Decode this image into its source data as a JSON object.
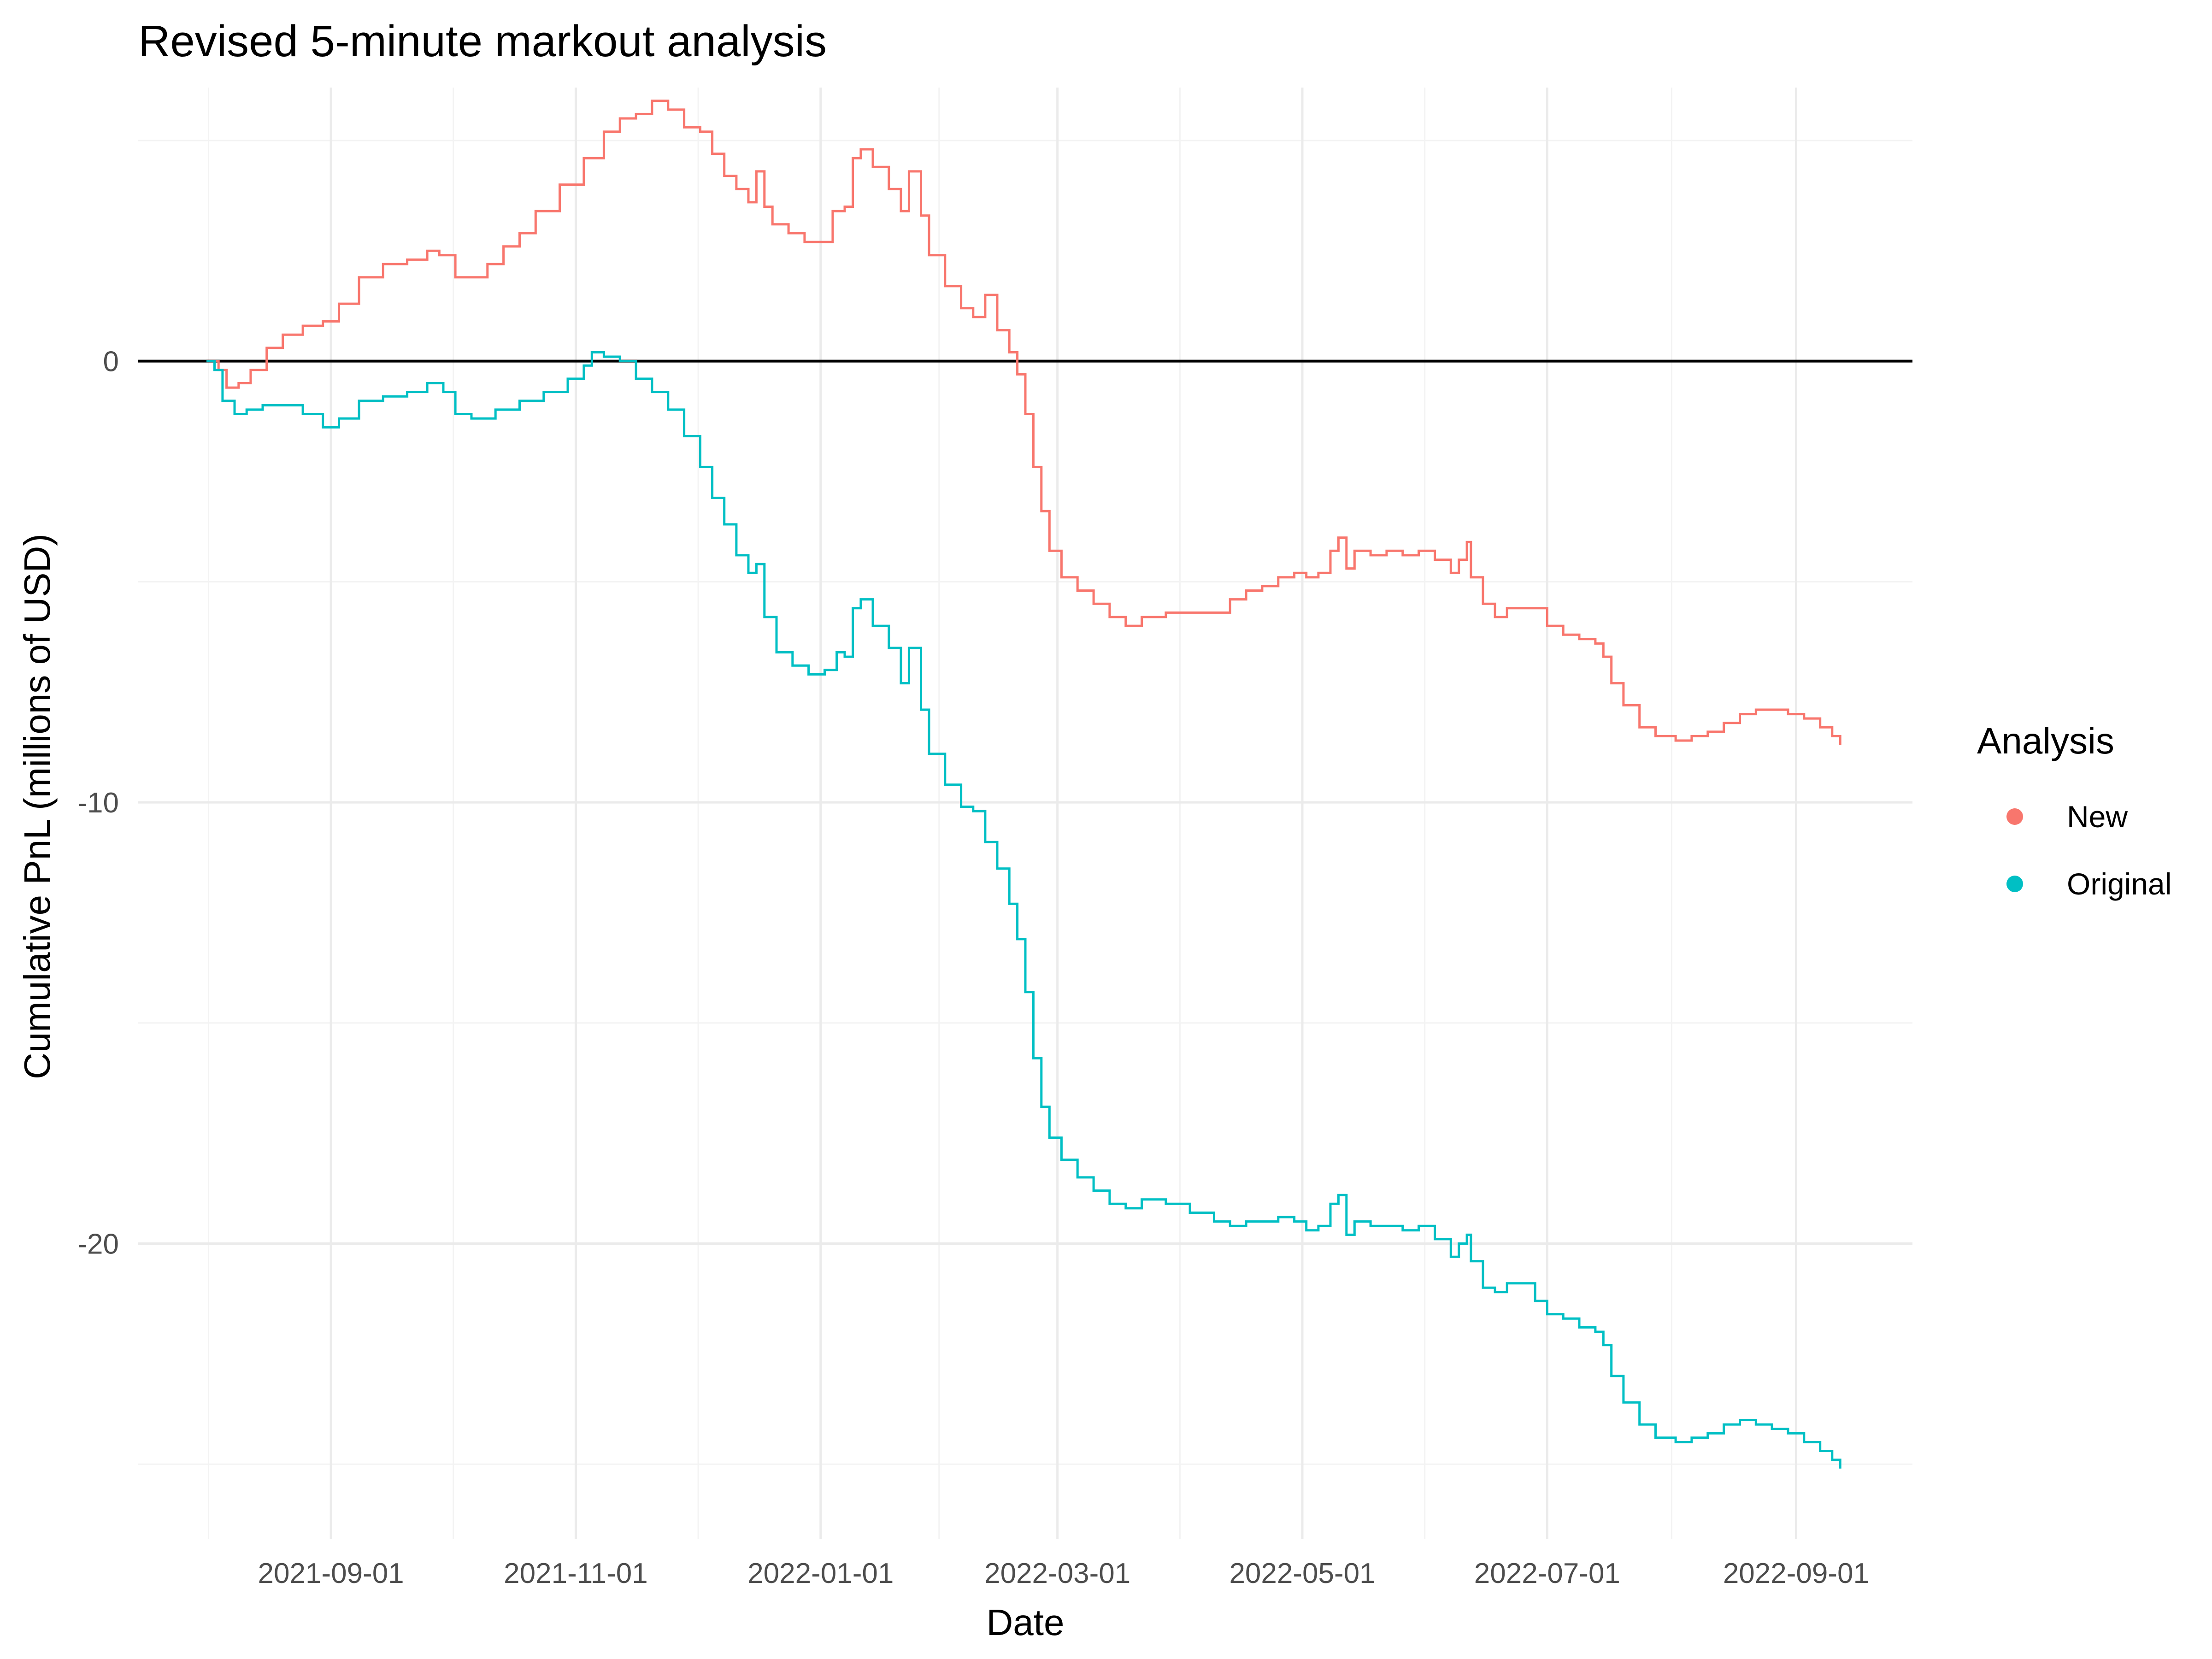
{
  "chart_data": {
    "type": "line",
    "title": "Revised 5-minute markout analysis",
    "xlabel": "Date",
    "ylabel": "Cumulative PnL (millions of USD)",
    "x_type": "date",
    "xlim": [
      "2021-07-15",
      "2022-09-30"
    ],
    "ylim": [
      -26.7,
      6.2
    ],
    "x_ticks": [
      "2021-09-01",
      "2021-11-01",
      "2022-01-01",
      "2022-03-01",
      "2022-05-01",
      "2022-07-01",
      "2022-09-01"
    ],
    "y_ticks": [
      0,
      -10,
      -20
    ],
    "y_tick_labels": [
      "0",
      "-10",
      "-20"
    ],
    "grid": true,
    "hline": 0,
    "legend": {
      "title": "Analysis",
      "position": "right"
    },
    "series": [
      {
        "name": "New",
        "color": "#F8766D",
        "points": [
          [
            "2021-08-01",
            0.0
          ],
          [
            "2021-08-04",
            -0.2
          ],
          [
            "2021-08-06",
            -0.6
          ],
          [
            "2021-08-09",
            -0.5
          ],
          [
            "2021-08-12",
            -0.2
          ],
          [
            "2021-08-16",
            0.3
          ],
          [
            "2021-08-20",
            0.6
          ],
          [
            "2021-08-25",
            0.8
          ],
          [
            "2021-08-30",
            0.9
          ],
          [
            "2021-09-03",
            1.3
          ],
          [
            "2021-09-08",
            1.9
          ],
          [
            "2021-09-14",
            2.2
          ],
          [
            "2021-09-20",
            2.3
          ],
          [
            "2021-09-25",
            2.5
          ],
          [
            "2021-09-28",
            2.4
          ],
          [
            "2021-10-02",
            1.9
          ],
          [
            "2021-10-06",
            1.9
          ],
          [
            "2021-10-10",
            2.2
          ],
          [
            "2021-10-14",
            2.6
          ],
          [
            "2021-10-18",
            2.9
          ],
          [
            "2021-10-22",
            3.4
          ],
          [
            "2021-10-28",
            4.0
          ],
          [
            "2021-11-03",
            4.6
          ],
          [
            "2021-11-08",
            5.2
          ],
          [
            "2021-11-12",
            5.5
          ],
          [
            "2021-11-16",
            5.6
          ],
          [
            "2021-11-20",
            5.9
          ],
          [
            "2021-11-24",
            5.7
          ],
          [
            "2021-11-28",
            5.3
          ],
          [
            "2021-12-02",
            5.2
          ],
          [
            "2021-12-05",
            4.7
          ],
          [
            "2021-12-08",
            4.2
          ],
          [
            "2021-12-11",
            3.9
          ],
          [
            "2021-12-14",
            3.6
          ],
          [
            "2021-12-16",
            4.3
          ],
          [
            "2021-12-18",
            3.5
          ],
          [
            "2021-12-20",
            3.1
          ],
          [
            "2021-12-24",
            2.9
          ],
          [
            "2021-12-28",
            2.7
          ],
          [
            "2022-01-01",
            2.7
          ],
          [
            "2022-01-04",
            3.4
          ],
          [
            "2022-01-07",
            3.5
          ],
          [
            "2022-01-09",
            4.6
          ],
          [
            "2022-01-11",
            4.8
          ],
          [
            "2022-01-14",
            4.4
          ],
          [
            "2022-01-18",
            3.9
          ],
          [
            "2022-01-21",
            3.4
          ],
          [
            "2022-01-23",
            4.3
          ],
          [
            "2022-01-26",
            3.3
          ],
          [
            "2022-01-28",
            2.4
          ],
          [
            "2022-02-01",
            1.7
          ],
          [
            "2022-02-05",
            1.2
          ],
          [
            "2022-02-08",
            1.0
          ],
          [
            "2022-02-11",
            1.5
          ],
          [
            "2022-02-14",
            0.7
          ],
          [
            "2022-02-17",
            0.2
          ],
          [
            "2022-02-19",
            -0.3
          ],
          [
            "2022-02-21",
            -1.2
          ],
          [
            "2022-02-23",
            -2.4
          ],
          [
            "2022-02-25",
            -3.4
          ],
          [
            "2022-02-27",
            -4.3
          ],
          [
            "2022-03-02",
            -4.9
          ],
          [
            "2022-03-06",
            -5.2
          ],
          [
            "2022-03-10",
            -5.5
          ],
          [
            "2022-03-14",
            -5.8
          ],
          [
            "2022-03-18",
            -6.0
          ],
          [
            "2022-03-22",
            -5.8
          ],
          [
            "2022-03-28",
            -5.7
          ],
          [
            "2022-04-03",
            -5.7
          ],
          [
            "2022-04-09",
            -5.7
          ],
          [
            "2022-04-13",
            -5.4
          ],
          [
            "2022-04-17",
            -5.2
          ],
          [
            "2022-04-21",
            -5.1
          ],
          [
            "2022-04-25",
            -4.9
          ],
          [
            "2022-04-29",
            -4.8
          ],
          [
            "2022-05-02",
            -4.9
          ],
          [
            "2022-05-05",
            -4.8
          ],
          [
            "2022-05-08",
            -4.3
          ],
          [
            "2022-05-10",
            -4.0
          ],
          [
            "2022-05-12",
            -4.7
          ],
          [
            "2022-05-14",
            -4.3
          ],
          [
            "2022-05-18",
            -4.4
          ],
          [
            "2022-05-22",
            -4.3
          ],
          [
            "2022-05-26",
            -4.4
          ],
          [
            "2022-05-30",
            -4.3
          ],
          [
            "2022-06-03",
            -4.5
          ],
          [
            "2022-06-07",
            -4.8
          ],
          [
            "2022-06-09",
            -4.5
          ],
          [
            "2022-06-11",
            -4.1
          ],
          [
            "2022-06-12",
            -4.9
          ],
          [
            "2022-06-15",
            -5.5
          ],
          [
            "2022-06-18",
            -5.8
          ],
          [
            "2022-06-21",
            -5.6
          ],
          [
            "2022-06-24",
            -5.6
          ],
          [
            "2022-06-28",
            -5.6
          ],
          [
            "2022-07-01",
            -6.0
          ],
          [
            "2022-07-05",
            -6.2
          ],
          [
            "2022-07-09",
            -6.3
          ],
          [
            "2022-07-13",
            -6.4
          ],
          [
            "2022-07-15",
            -6.7
          ],
          [
            "2022-07-17",
            -7.3
          ],
          [
            "2022-07-20",
            -7.8
          ],
          [
            "2022-07-24",
            -8.3
          ],
          [
            "2022-07-28",
            -8.5
          ],
          [
            "2022-08-02",
            -8.6
          ],
          [
            "2022-08-06",
            -8.5
          ],
          [
            "2022-08-10",
            -8.4
          ],
          [
            "2022-08-14",
            -8.2
          ],
          [
            "2022-08-18",
            -8.0
          ],
          [
            "2022-08-22",
            -7.9
          ],
          [
            "2022-08-26",
            -7.9
          ],
          [
            "2022-08-30",
            -8.0
          ],
          [
            "2022-09-03",
            -8.1
          ],
          [
            "2022-09-07",
            -8.3
          ],
          [
            "2022-09-10",
            -8.5
          ],
          [
            "2022-09-12",
            -8.7
          ]
        ]
      },
      {
        "name": "Original",
        "color": "#00BFC4",
        "points": [
          [
            "2021-08-01",
            0.0
          ],
          [
            "2021-08-03",
            -0.2
          ],
          [
            "2021-08-05",
            -0.9
          ],
          [
            "2021-08-08",
            -1.2
          ],
          [
            "2021-08-11",
            -1.1
          ],
          [
            "2021-08-15",
            -1.0
          ],
          [
            "2021-08-20",
            -1.0
          ],
          [
            "2021-08-25",
            -1.2
          ],
          [
            "2021-08-30",
            -1.5
          ],
          [
            "2021-09-03",
            -1.3
          ],
          [
            "2021-09-08",
            -0.9
          ],
          [
            "2021-09-14",
            -0.8
          ],
          [
            "2021-09-20",
            -0.7
          ],
          [
            "2021-09-25",
            -0.5
          ],
          [
            "2021-09-29",
            -0.7
          ],
          [
            "2021-10-02",
            -1.2
          ],
          [
            "2021-10-06",
            -1.3
          ],
          [
            "2021-10-12",
            -1.1
          ],
          [
            "2021-10-18",
            -0.9
          ],
          [
            "2021-10-24",
            -0.7
          ],
          [
            "2021-10-30",
            -0.4
          ],
          [
            "2021-11-03",
            -0.1
          ],
          [
            "2021-11-05",
            0.2
          ],
          [
            "2021-11-08",
            0.1
          ],
          [
            "2021-11-12",
            0.0
          ],
          [
            "2021-11-16",
            -0.4
          ],
          [
            "2021-11-20",
            -0.7
          ],
          [
            "2021-11-24",
            -1.1
          ],
          [
            "2021-11-28",
            -1.7
          ],
          [
            "2021-12-02",
            -2.4
          ],
          [
            "2021-12-05",
            -3.1
          ],
          [
            "2021-12-08",
            -3.7
          ],
          [
            "2021-12-11",
            -4.4
          ],
          [
            "2021-12-14",
            -4.8
          ],
          [
            "2021-12-16",
            -4.6
          ],
          [
            "2021-12-18",
            -5.8
          ],
          [
            "2021-12-21",
            -6.6
          ],
          [
            "2021-12-25",
            -6.9
          ],
          [
            "2021-12-29",
            -7.1
          ],
          [
            "2022-01-02",
            -7.0
          ],
          [
            "2022-01-05",
            -6.6
          ],
          [
            "2022-01-07",
            -6.7
          ],
          [
            "2022-01-09",
            -5.6
          ],
          [
            "2022-01-11",
            -5.4
          ],
          [
            "2022-01-14",
            -6.0
          ],
          [
            "2022-01-18",
            -6.5
          ],
          [
            "2022-01-21",
            -7.3
          ],
          [
            "2022-01-23",
            -6.5
          ],
          [
            "2022-01-26",
            -7.9
          ],
          [
            "2022-01-28",
            -8.9
          ],
          [
            "2022-02-01",
            -9.6
          ],
          [
            "2022-02-05",
            -10.1
          ],
          [
            "2022-02-08",
            -10.2
          ],
          [
            "2022-02-11",
            -10.9
          ],
          [
            "2022-02-14",
            -11.5
          ],
          [
            "2022-02-17",
            -12.3
          ],
          [
            "2022-02-19",
            -13.1
          ],
          [
            "2022-02-21",
            -14.3
          ],
          [
            "2022-02-23",
            -15.8
          ],
          [
            "2022-02-25",
            -16.9
          ],
          [
            "2022-02-27",
            -17.6
          ],
          [
            "2022-03-02",
            -18.1
          ],
          [
            "2022-03-06",
            -18.5
          ],
          [
            "2022-03-10",
            -18.8
          ],
          [
            "2022-03-14",
            -19.1
          ],
          [
            "2022-03-18",
            -19.2
          ],
          [
            "2022-03-22",
            -19.0
          ],
          [
            "2022-03-28",
            -19.1
          ],
          [
            "2022-04-03",
            -19.3
          ],
          [
            "2022-04-09",
            -19.5
          ],
          [
            "2022-04-13",
            -19.6
          ],
          [
            "2022-04-17",
            -19.5
          ],
          [
            "2022-04-21",
            -19.5
          ],
          [
            "2022-04-25",
            -19.4
          ],
          [
            "2022-04-29",
            -19.5
          ],
          [
            "2022-05-02",
            -19.7
          ],
          [
            "2022-05-05",
            -19.6
          ],
          [
            "2022-05-08",
            -19.1
          ],
          [
            "2022-05-10",
            -18.9
          ],
          [
            "2022-05-12",
            -19.8
          ],
          [
            "2022-05-14",
            -19.5
          ],
          [
            "2022-05-18",
            -19.6
          ],
          [
            "2022-05-22",
            -19.6
          ],
          [
            "2022-05-26",
            -19.7
          ],
          [
            "2022-05-30",
            -19.6
          ],
          [
            "2022-06-03",
            -19.9
          ],
          [
            "2022-06-07",
            -20.3
          ],
          [
            "2022-06-09",
            -20.0
          ],
          [
            "2022-06-11",
            -19.8
          ],
          [
            "2022-06-12",
            -20.4
          ],
          [
            "2022-06-15",
            -21.0
          ],
          [
            "2022-06-18",
            -21.1
          ],
          [
            "2022-06-21",
            -20.9
          ],
          [
            "2022-06-24",
            -20.9
          ],
          [
            "2022-06-28",
            -21.3
          ],
          [
            "2022-07-01",
            -21.6
          ],
          [
            "2022-07-05",
            -21.7
          ],
          [
            "2022-07-09",
            -21.9
          ],
          [
            "2022-07-13",
            -22.0
          ],
          [
            "2022-07-15",
            -22.3
          ],
          [
            "2022-07-17",
            -23.0
          ],
          [
            "2022-07-20",
            -23.6
          ],
          [
            "2022-07-24",
            -24.1
          ],
          [
            "2022-07-28",
            -24.4
          ],
          [
            "2022-08-02",
            -24.5
          ],
          [
            "2022-08-06",
            -24.4
          ],
          [
            "2022-08-10",
            -24.3
          ],
          [
            "2022-08-14",
            -24.1
          ],
          [
            "2022-08-18",
            -24.0
          ],
          [
            "2022-08-22",
            -24.1
          ],
          [
            "2022-08-26",
            -24.2
          ],
          [
            "2022-08-30",
            -24.3
          ],
          [
            "2022-09-03",
            -24.5
          ],
          [
            "2022-09-07",
            -24.7
          ],
          [
            "2022-09-10",
            -24.9
          ],
          [
            "2022-09-12",
            -25.1
          ]
        ]
      }
    ]
  }
}
